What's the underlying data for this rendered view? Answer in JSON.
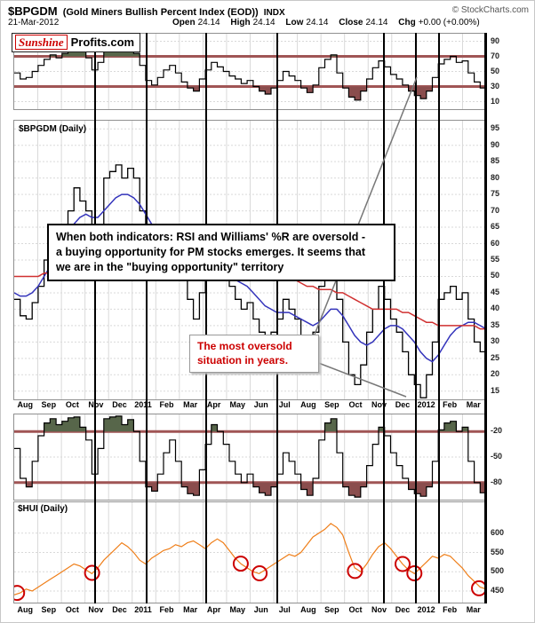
{
  "header": {
    "symbol": "$BPGDM",
    "description": "(Gold Miners Bullish Percent Index (EOD))",
    "exchange": "INDX",
    "copyright": "© StockCharts.com",
    "date": "21-Mar-2012",
    "quote": [
      {
        "label": "Open",
        "value": "24.14"
      },
      {
        "label": "High",
        "value": "24.14"
      },
      {
        "label": "Low",
        "value": "24.14"
      },
      {
        "label": "Close",
        "value": "24.14"
      },
      {
        "label": "Chg",
        "value": "+0.00 (+0.00%)"
      }
    ],
    "logo": {
      "part1": "Sunshine",
      "part2": "Profits.com"
    }
  },
  "panels": {
    "main_label": "$BPGDM (Daily)",
    "hui_label": "$HUI (Daily)"
  },
  "annotations": {
    "main_note": "When both indicators: RSI and Williams' %R are oversold -\na buying opportunity for PM stocks emerges. It seems that\nwe are in the \"buying opportunity\" territory",
    "oversold_note": "The most oversold\nsituation in years.",
    "pointer_lines": [
      [
        347,
        391,
        468,
        86
      ],
      [
        347,
        404,
        456,
        446
      ]
    ]
  },
  "axis": {
    "months": [
      "Aug",
      "Sep",
      "Oct",
      "Nov",
      "Dec",
      "2011",
      "Feb",
      "Mar",
      "Apr",
      "May",
      "Jun",
      "Jul",
      "Aug",
      "Sep",
      "Oct",
      "Nov",
      "Dec",
      "2012",
      "Feb",
      "Mar"
    ]
  },
  "vertical_lines": [
    0.171,
    0.281,
    0.407,
    0.557,
    0.783,
    0.851,
    0.9,
    0.998
  ],
  "colors": {
    "price": "#000000",
    "ma_blue": "#3333bb",
    "ma_red": "#d03030",
    "hui_orange": "#ef7f1a",
    "circle": "#cc0000",
    "threshold": "#a05555",
    "overbought_fill": "#57664a",
    "oversold_fill": "#8a4d4d",
    "grid": "#d9d9d9",
    "note_red": "#cc0000",
    "logo_red": "#cc0000"
  },
  "chart_data": [
    {
      "type": "line",
      "name": "RSI momentum indicator",
      "data_name": "rsi-line",
      "ylim": [
        0,
        100
      ],
      "yticks": [
        90,
        70,
        50,
        30,
        10
      ],
      "overbought": 70,
      "oversold": 30,
      "step": true,
      "values": [
        48,
        40,
        42,
        50,
        58,
        66,
        72,
        68,
        74,
        80,
        85,
        76,
        68,
        52,
        62,
        84,
        88,
        90,
        80,
        84,
        74,
        58,
        38,
        32,
        42,
        52,
        58,
        48,
        36,
        28,
        24,
        40,
        52,
        62,
        56,
        50,
        44,
        40,
        34,
        38,
        30,
        24,
        20,
        28,
        38,
        50,
        44,
        38,
        28,
        22,
        32,
        55,
        66,
        72,
        48,
        28,
        16,
        12,
        24,
        40,
        55,
        64,
        56,
        46,
        40,
        32,
        24,
        18,
        14,
        24,
        42,
        60,
        66,
        70,
        62,
        64,
        48,
        36,
        28,
        22
      ]
    },
    {
      "type": "line",
      "name": "$BPGDM (Daily)",
      "ylim": [
        12.5,
        97.5
      ],
      "yticks": [
        95,
        90,
        85,
        80,
        75,
        70,
        65,
        60,
        55,
        50,
        45,
        40,
        35,
        30,
        25,
        20,
        15
      ],
      "series": [
        {
          "name": "$BPGDM price",
          "data_name": "bpgdm-price-line",
          "color_key": "price",
          "step": true,
          "width": 1.3,
          "values": [
            43,
            38,
            37,
            42,
            47,
            55,
            60,
            57,
            63,
            70,
            77,
            73,
            70,
            57,
            63,
            80,
            82,
            84,
            80,
            83,
            80,
            70,
            57,
            55,
            57,
            63,
            65,
            60,
            50,
            43,
            37,
            45,
            50,
            57,
            53,
            50,
            47,
            43,
            40,
            42,
            37,
            33,
            30,
            33,
            37,
            43,
            40,
            37,
            30,
            27,
            33,
            47,
            53,
            57,
            43,
            30,
            20,
            17,
            23,
            33,
            40,
            47,
            43,
            37,
            33,
            27,
            20,
            17,
            13,
            20,
            30,
            43,
            45,
            47,
            43,
            45,
            37,
            30,
            27,
            24
          ]
        },
        {
          "name": "moving average fast",
          "data_name": "ma-blue-line",
          "color_key": "ma_blue",
          "step": false,
          "width": 1.5,
          "values": [
            45,
            44,
            44,
            45,
            47,
            50,
            53,
            56,
            60,
            63,
            66,
            68,
            69,
            68,
            68,
            70,
            72,
            74,
            75,
            75,
            74,
            72,
            69,
            66,
            64,
            63,
            62,
            61,
            59,
            56,
            53,
            52,
            52,
            52,
            52,
            51,
            50,
            49,
            48,
            47,
            45,
            43,
            41,
            40,
            39,
            39,
            39,
            38,
            37,
            36,
            35,
            36,
            38,
            40,
            40,
            38,
            35,
            32,
            30,
            29,
            30,
            32,
            34,
            35,
            35,
            34,
            32,
            30,
            27,
            25,
            24,
            26,
            29,
            32,
            34,
            35,
            36,
            36,
            35,
            34
          ]
        },
        {
          "name": "moving average slow",
          "data_name": "ma-red-line",
          "color_key": "ma_red",
          "step": false,
          "width": 1.5,
          "values": [
            50,
            50,
            50,
            50,
            50,
            51,
            51,
            52,
            52,
            53,
            54,
            55,
            56,
            56,
            57,
            57,
            58,
            58,
            59,
            59,
            60,
            60,
            60,
            60,
            60,
            60,
            60,
            60,
            59,
            59,
            58,
            58,
            58,
            57,
            57,
            57,
            57,
            56,
            56,
            55,
            55,
            54,
            53,
            52,
            51,
            50,
            50,
            49,
            48,
            47,
            47,
            46,
            46,
            46,
            45,
            45,
            44,
            43,
            42,
            41,
            40,
            40,
            40,
            40,
            40,
            39,
            39,
            38,
            37,
            36,
            36,
            35,
            35,
            35,
            35,
            35,
            35,
            35,
            34,
            34
          ]
        }
      ]
    },
    {
      "type": "line",
      "name": "Williams %R indicator",
      "data_name": "williams-r-line",
      "ylim": [
        -100,
        0
      ],
      "yticks": [
        -20,
        -50,
        -80
      ],
      "overbought": -20,
      "oversold": -80,
      "step": true,
      "values": [
        -40,
        -75,
        -85,
        -55,
        -25,
        -10,
        -5,
        -12,
        -8,
        -4,
        -3,
        -15,
        -30,
        -70,
        -40,
        -5,
        -3,
        -2,
        -12,
        -6,
        -20,
        -55,
        -85,
        -90,
        -70,
        -45,
        -30,
        -55,
        -85,
        -93,
        -95,
        -65,
        -35,
        -12,
        -20,
        -35,
        -55,
        -70,
        -80,
        -70,
        -85,
        -92,
        -95,
        -85,
        -70,
        -45,
        -55,
        -70,
        -88,
        -95,
        -75,
        -30,
        -10,
        -5,
        -45,
        -85,
        -95,
        -97,
        -85,
        -60,
        -35,
        -15,
        -25,
        -45,
        -60,
        -75,
        -88,
        -93,
        -96,
        -85,
        -55,
        -18,
        -10,
        -8,
        -20,
        -15,
        -55,
        -80,
        -92,
        -96
      ]
    },
    {
      "type": "line",
      "name": "$HUI (Daily)",
      "data_name": "hui-line",
      "ylim": [
        420,
        680
      ],
      "yticks": [
        600,
        550,
        500,
        450
      ],
      "color_key": "hui_orange",
      "step": false,
      "values": [
        440,
        445,
        455,
        450,
        460,
        470,
        480,
        490,
        500,
        510,
        520,
        515,
        505,
        495,
        510,
        530,
        545,
        560,
        575,
        565,
        550,
        530,
        520,
        535,
        545,
        555,
        560,
        570,
        565,
        575,
        580,
        570,
        560,
        575,
        585,
        575,
        555,
        535,
        520,
        510,
        500,
        495,
        505,
        515,
        525,
        535,
        545,
        540,
        550,
        570,
        590,
        600,
        610,
        625,
        615,
        595,
        550,
        510,
        500,
        520,
        545,
        565,
        575,
        560,
        540,
        520,
        505,
        495,
        510,
        525,
        540,
        535,
        545,
        540,
        525,
        510,
        490,
        475,
        460,
        455
      ],
      "circles": [
        {
          "x": 0.006,
          "v": 445
        },
        {
          "x": 0.165,
          "v": 497
        },
        {
          "x": 0.48,
          "v": 521
        },
        {
          "x": 0.52,
          "v": 496
        },
        {
          "x": 0.722,
          "v": 502
        },
        {
          "x": 0.823,
          "v": 520
        },
        {
          "x": 0.848,
          "v": 496
        },
        {
          "x": 0.985,
          "v": 457
        }
      ]
    }
  ]
}
